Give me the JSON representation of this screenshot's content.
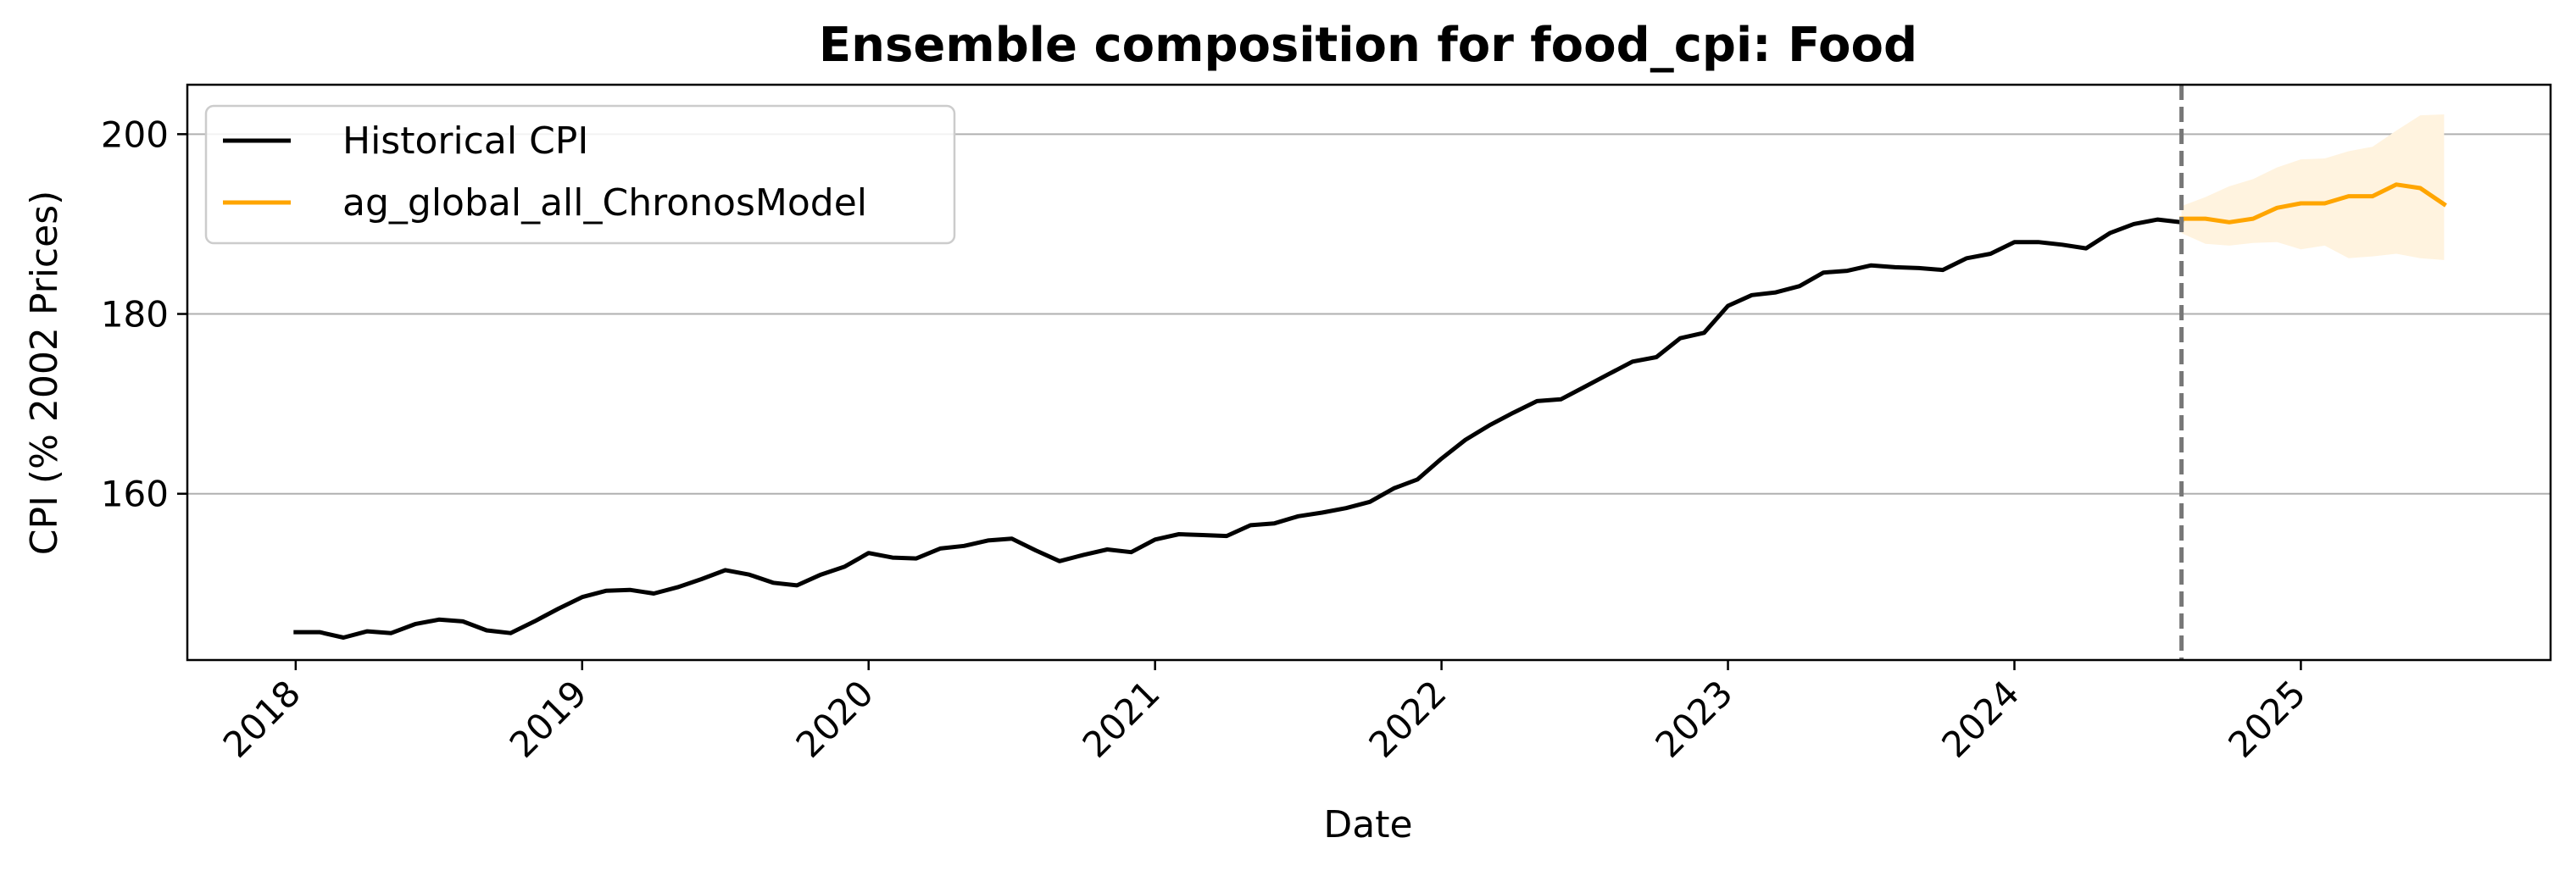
{
  "chart_data": {
    "type": "line",
    "title": "Ensemble composition for food_cpi: Food",
    "xlabel": "Date",
    "ylabel": "CPI (% 2002 Prices)",
    "x_ticks": [
      "2018",
      "2019",
      "2020",
      "2021",
      "2022",
      "2023",
      "2024",
      "2025"
    ],
    "y_ticks": [
      160,
      180,
      200
    ],
    "xlim": [
      "2017-08-15",
      "2025-11-15"
    ],
    "ylim": [
      141.5,
      205.5
    ],
    "grid": "horizontal",
    "legend_position": "top-left",
    "forecast_start": "2024-08-01",
    "colors": {
      "historical": "#000000",
      "forecast": "#FFA500",
      "band": "#FFF3DF",
      "divider": "#777777",
      "grid": "#B0B0B0"
    },
    "series": [
      {
        "name": "Historical CPI",
        "color": "#000000",
        "points": [
          [
            "2018-01",
            144.6
          ],
          [
            "2018-02",
            144.6
          ],
          [
            "2018-03",
            144.0
          ],
          [
            "2018-04",
            144.7
          ],
          [
            "2018-05",
            144.5
          ],
          [
            "2018-06",
            145.5
          ],
          [
            "2018-07",
            146.0
          ],
          [
            "2018-08",
            145.8
          ],
          [
            "2018-09",
            144.8
          ],
          [
            "2018-10",
            144.5
          ],
          [
            "2018-11",
            145.8
          ],
          [
            "2018-12",
            147.2
          ],
          [
            "2019-01",
            148.5
          ],
          [
            "2019-02",
            149.2
          ],
          [
            "2019-03",
            149.3
          ],
          [
            "2019-04",
            148.9
          ],
          [
            "2019-05",
            149.6
          ],
          [
            "2019-06",
            150.5
          ],
          [
            "2019-07",
            151.5
          ],
          [
            "2019-08",
            151.0
          ],
          [
            "2019-09",
            150.1
          ],
          [
            "2019-10",
            149.8
          ],
          [
            "2019-11",
            151.0
          ],
          [
            "2019-12",
            151.9
          ],
          [
            "2020-01",
            153.4
          ],
          [
            "2020-02",
            152.9
          ],
          [
            "2020-03",
            152.8
          ],
          [
            "2020-04",
            153.9
          ],
          [
            "2020-05",
            154.2
          ],
          [
            "2020-06",
            154.8
          ],
          [
            "2020-07",
            155.0
          ],
          [
            "2020-08",
            153.7
          ],
          [
            "2020-09",
            152.5
          ],
          [
            "2020-10",
            153.2
          ],
          [
            "2020-11",
            153.8
          ],
          [
            "2020-12",
            153.5
          ],
          [
            "2021-01",
            154.9
          ],
          [
            "2021-02",
            155.5
          ],
          [
            "2021-03",
            155.4
          ],
          [
            "2021-04",
            155.3
          ],
          [
            "2021-05",
            156.5
          ],
          [
            "2021-06",
            156.7
          ],
          [
            "2021-07",
            157.5
          ],
          [
            "2021-08",
            157.9
          ],
          [
            "2021-09",
            158.4
          ],
          [
            "2021-10",
            159.1
          ],
          [
            "2021-11",
            160.6
          ],
          [
            "2021-12",
            161.6
          ],
          [
            "2022-01",
            163.9
          ],
          [
            "2022-02",
            166.0
          ],
          [
            "2022-03",
            167.6
          ],
          [
            "2022-04",
            169.0
          ],
          [
            "2022-05",
            170.3
          ],
          [
            "2022-06",
            170.5
          ],
          [
            "2022-07",
            171.9
          ],
          [
            "2022-08",
            173.3
          ],
          [
            "2022-09",
            174.7
          ],
          [
            "2022-10",
            175.2
          ],
          [
            "2022-11",
            177.3
          ],
          [
            "2022-12",
            177.9
          ],
          [
            "2023-01",
            180.9
          ],
          [
            "2023-02",
            182.1
          ],
          [
            "2023-03",
            182.4
          ],
          [
            "2023-04",
            183.1
          ],
          [
            "2023-05",
            184.6
          ],
          [
            "2023-06",
            184.8
          ],
          [
            "2023-07",
            185.4
          ],
          [
            "2023-08",
            185.2
          ],
          [
            "2023-09",
            185.1
          ],
          [
            "2023-10",
            184.9
          ],
          [
            "2023-11",
            186.2
          ],
          [
            "2023-12",
            186.7
          ],
          [
            "2024-01",
            188.0
          ],
          [
            "2024-02",
            188.0
          ],
          [
            "2024-03",
            187.7
          ],
          [
            "2024-04",
            187.3
          ],
          [
            "2024-05",
            189.0
          ],
          [
            "2024-06",
            190.0
          ],
          [
            "2024-07",
            190.5
          ],
          [
            "2024-08",
            190.2
          ]
        ]
      },
      {
        "name": "ag_global_all_ChronosModel",
        "color": "#FFA500",
        "points": [
          [
            "2024-08",
            190.6
          ],
          [
            "2024-09",
            190.6
          ],
          [
            "2024-10",
            190.2
          ],
          [
            "2024-11",
            190.6
          ],
          [
            "2024-12",
            191.8
          ],
          [
            "2025-01",
            192.3
          ],
          [
            "2025-02",
            192.3
          ],
          [
            "2025-03",
            193.1
          ],
          [
            "2025-04",
            193.1
          ],
          [
            "2025-05",
            194.4
          ],
          [
            "2025-06",
            194.0
          ],
          [
            "2025-07",
            192.2
          ]
        ],
        "lower": [
          189.0,
          187.8,
          187.6,
          187.9,
          188.0,
          187.2,
          187.6,
          186.2,
          186.4,
          186.7,
          186.2,
          186.0
        ],
        "upper": [
          192.0,
          193.0,
          194.2,
          195.0,
          196.3,
          197.2,
          197.3,
          198.1,
          198.6,
          200.4,
          202.1,
          202.2
        ]
      }
    ]
  }
}
